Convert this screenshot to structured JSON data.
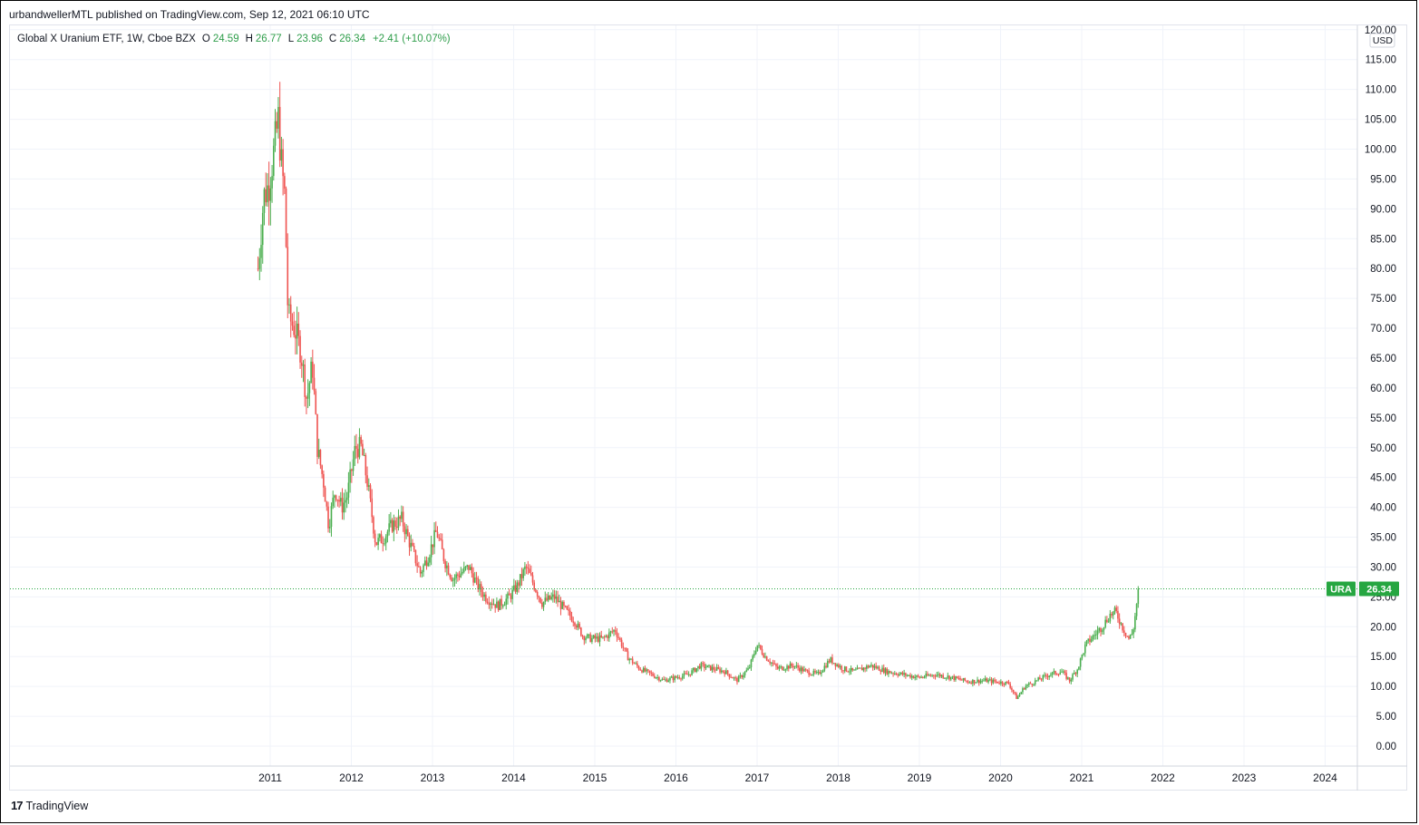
{
  "header": {
    "publisher_line": "urbandwellerMTL published on TradingView.com, Sep 12, 2021 06:10 UTC"
  },
  "legend": {
    "symbol_desc": "Global X Uranium ETF, 1W, Cboe BZX",
    "open_label": "O",
    "open_value": "24.59",
    "high_label": "H",
    "high_value": "26.77",
    "low_label": "L",
    "low_value": "23.96",
    "close_label": "C",
    "close_value": "26.34",
    "change": "+2.41 (+10.07%)"
  },
  "footer": {
    "brand": "TradingView",
    "logo_icon": "tradingview-logo-icon"
  },
  "colors": {
    "up": "#26a69a",
    "up_candle": "#4caf50",
    "down": "#ef5350",
    "grid": "#f0f3fa",
    "price_tag": "#26a641"
  },
  "chart_data": {
    "type": "candlestick",
    "title": "Global X Uranium ETF, 1W, Cboe BZX",
    "currency_label": "USD",
    "ticker_tag": "URA",
    "last_price": "26.34",
    "ylim": [
      -3,
      120
    ],
    "y_ticks": [
      "120.00",
      "115.00",
      "110.00",
      "105.00",
      "100.00",
      "95.00",
      "90.00",
      "85.00",
      "80.00",
      "75.00",
      "70.00",
      "65.00",
      "60.00",
      "55.00",
      "50.00",
      "45.00",
      "40.00",
      "35.00",
      "30.00",
      "25.00",
      "20.00",
      "15.00",
      "10.00",
      "5.00",
      "0.00"
    ],
    "x_ticks": [
      "2011",
      "2012",
      "2013",
      "2014",
      "2015",
      "2016",
      "2017",
      "2018",
      "2019",
      "2020",
      "2021",
      "2022",
      "2023",
      "2024"
    ],
    "x_range_years": [
      2010.0,
      2024.4
    ],
    "grid": true,
    "price_path": [
      [
        2010.85,
        80
      ],
      [
        2010.92,
        92
      ],
      [
        2010.98,
        94
      ],
      [
        2011.05,
        100
      ],
      [
        2011.1,
        105
      ],
      [
        2011.14,
        97
      ],
      [
        2011.18,
        92
      ],
      [
        2011.22,
        72
      ],
      [
        2011.3,
        70
      ],
      [
        2011.38,
        66
      ],
      [
        2011.45,
        58
      ],
      [
        2011.52,
        64
      ],
      [
        2011.58,
        50
      ],
      [
        2011.66,
        44
      ],
      [
        2011.72,
        37
      ],
      [
        2011.8,
        43
      ],
      [
        2011.88,
        40
      ],
      [
        2011.95,
        42
      ],
      [
        2012.05,
        50
      ],
      [
        2012.12,
        50
      ],
      [
        2012.2,
        44
      ],
      [
        2012.3,
        34
      ],
      [
        2012.4,
        35
      ],
      [
        2012.5,
        37
      ],
      [
        2012.62,
        38
      ],
      [
        2012.72,
        34
      ],
      [
        2012.85,
        29
      ],
      [
        2012.95,
        32
      ],
      [
        2013.05,
        36
      ],
      [
        2013.15,
        31
      ],
      [
        2013.25,
        28
      ],
      [
        2013.35,
        29
      ],
      [
        2013.45,
        30
      ],
      [
        2013.55,
        27
      ],
      [
        2013.65,
        25
      ],
      [
        2013.8,
        23.5
      ],
      [
        2013.95,
        25
      ],
      [
        2014.05,
        27
      ],
      [
        2014.15,
        30
      ],
      [
        2014.25,
        27
      ],
      [
        2014.35,
        24
      ],
      [
        2014.5,
        25
      ],
      [
        2014.62,
        23
      ],
      [
        2014.75,
        21
      ],
      [
        2014.85,
        18.5
      ],
      [
        2014.95,
        18
      ],
      [
        2015.1,
        18
      ],
      [
        2015.25,
        19.5
      ],
      [
        2015.4,
        15
      ],
      [
        2015.55,
        13
      ],
      [
        2015.7,
        12
      ],
      [
        2015.85,
        11
      ],
      [
        2016.0,
        11.5
      ],
      [
        2016.15,
        12
      ],
      [
        2016.3,
        13.5
      ],
      [
        2016.45,
        13
      ],
      [
        2016.6,
        12.5
      ],
      [
        2016.75,
        11
      ],
      [
        2016.9,
        13
      ],
      [
        2017.0,
        17
      ],
      [
        2017.1,
        15
      ],
      [
        2017.25,
        13
      ],
      [
        2017.45,
        13.5
      ],
      [
        2017.6,
        12.5
      ],
      [
        2017.75,
        12
      ],
      [
        2017.9,
        14.5
      ],
      [
        2018.05,
        13
      ],
      [
        2018.2,
        12.5
      ],
      [
        2018.4,
        13.5
      ],
      [
        2018.6,
        12.5
      ],
      [
        2018.8,
        12
      ],
      [
        2019.0,
        11.5
      ],
      [
        2019.2,
        12
      ],
      [
        2019.4,
        11.5
      ],
      [
        2019.6,
        10.8
      ],
      [
        2019.8,
        11
      ],
      [
        2020.0,
        10.7
      ],
      [
        2020.1,
        10.5
      ],
      [
        2020.2,
        8
      ],
      [
        2020.3,
        10
      ],
      [
        2020.45,
        11
      ],
      [
        2020.6,
        12
      ],
      [
        2020.75,
        12.5
      ],
      [
        2020.85,
        11
      ],
      [
        2020.95,
        13
      ],
      [
        2021.05,
        17
      ],
      [
        2021.15,
        18.5
      ],
      [
        2021.25,
        20
      ],
      [
        2021.35,
        22
      ],
      [
        2021.42,
        22.5
      ],
      [
        2021.5,
        20
      ],
      [
        2021.58,
        18
      ],
      [
        2021.63,
        19
      ],
      [
        2021.67,
        23
      ],
      [
        2021.7,
        26.34
      ]
    ]
  }
}
